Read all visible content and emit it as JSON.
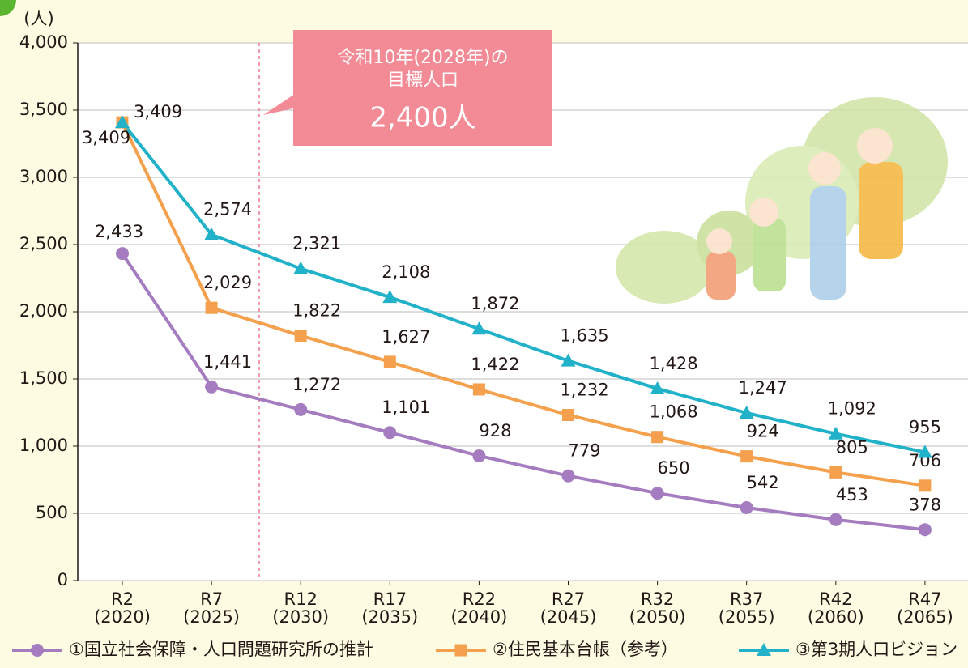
{
  "chart_data": {
    "type": "line",
    "y_unit": "(人)",
    "categories": [
      [
        "R2",
        "(2020)"
      ],
      [
        "R7",
        "(2025)"
      ],
      [
        "R12",
        "(2030)"
      ],
      [
        "R17",
        "(2035)"
      ],
      [
        "R22",
        "(2040)"
      ],
      [
        "R27",
        "(2045)"
      ],
      [
        "R32",
        "(2050)"
      ],
      [
        "R37",
        "(2055)"
      ],
      [
        "R42",
        "(2060)"
      ],
      [
        "R47",
        "(2065)"
      ]
    ],
    "ylim": [
      0,
      4000
    ],
    "yticks": [
      0,
      500,
      {
        "value": 1000,
        "label": "1,000"
      },
      {
        "value": 1500,
        "label": "1,500"
      },
      {
        "value": 2000,
        "label": "2,000"
      },
      {
        "value": 2500,
        "label": "2,500"
      },
      {
        "value": 3000,
        "label": "3,000"
      },
      {
        "value": 3500,
        "label": "3,500"
      },
      {
        "value": 4000,
        "label": "4,000"
      }
    ],
    "grid": true,
    "series": [
      {
        "name": "①国立社会保障・人口問題研究所の推計",
        "color": "#a47cbf",
        "marker": "circle",
        "values": [
          2433,
          1441,
          1272,
          1101,
          928,
          779,
          650,
          542,
          453,
          378
        ],
        "value_labels": [
          "2,433",
          "1,441",
          "1,272",
          "1,101",
          "928",
          "779",
          "650",
          "542",
          "453",
          "378"
        ]
      },
      {
        "name": "②住民基本台帳（参考）",
        "color": "#f4a04c",
        "marker": "square",
        "values": [
          3409,
          2029,
          1822,
          1627,
          1422,
          1232,
          1068,
          924,
          805,
          706
        ],
        "value_labels": [
          "3,409",
          "2,029",
          "1,822",
          "1,627",
          "1,422",
          "1,232",
          "1,068",
          "924",
          "805",
          "706"
        ]
      },
      {
        "name": "③第3期人口ビジョン",
        "color": "#21b2c9",
        "marker": "triangle",
        "values": [
          3409,
          2574,
          2321,
          2108,
          1872,
          1635,
          1428,
          1247,
          1092,
          955
        ],
        "value_labels": [
          "3,409",
          "2,574",
          "2,321",
          "2,108",
          "1,872",
          "1,635",
          "1,428",
          "1,247",
          "1,092",
          "955"
        ]
      }
    ],
    "annotation": {
      "lines": [
        "令和10年(2028年)の",
        "目標人口"
      ],
      "target": "2,400人"
    }
  }
}
